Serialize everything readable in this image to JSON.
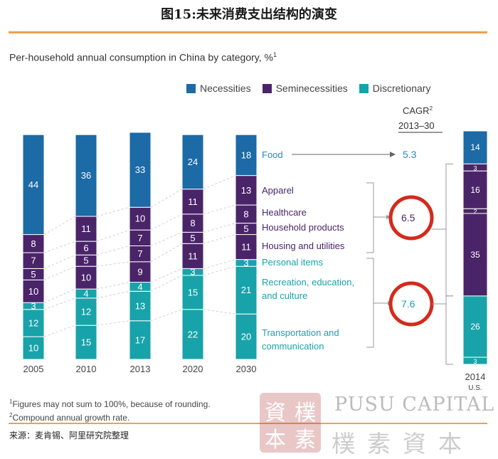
{
  "figure_title": "图15:未来消费支出结构的演变",
  "subtitle": "Per-household annual consumption in China by category, %",
  "subtitle_footnote_mark": "1",
  "legend": [
    {
      "label": "Necessities",
      "color": "#1c6aa6"
    },
    {
      "label": "Seminecessities",
      "color": "#4a2469"
    },
    {
      "label": "Discretionary",
      "color": "#17a3a9"
    }
  ],
  "cagr_header": {
    "line1": "CAGR",
    "mark": "2",
    "line2": "2013–30"
  },
  "chart_data": {
    "type": "bar",
    "stacked": true,
    "categories": [
      "2005",
      "2010",
      "2013",
      "2020",
      "2030"
    ],
    "segment_order_bottom_to_top": [
      "Transportation and communication",
      "Recreation, education, and culture",
      "Personal items",
      "Housing and utilities",
      "Household products",
      "Healthcare",
      "Apparel",
      "Food"
    ],
    "series": [
      {
        "name": "Transportation and communication",
        "group": "Discretionary",
        "values": [
          10,
          15,
          17,
          22,
          20
        ]
      },
      {
        "name": "Recreation, education, and culture",
        "group": "Discretionary",
        "values": [
          12,
          12,
          13,
          15,
          21
        ]
      },
      {
        "name": "Personal items",
        "group": "Discretionary",
        "values": [
          3,
          4,
          4,
          3,
          3
        ]
      },
      {
        "name": "Housing and utilities",
        "group": "Seminecessities",
        "values": [
          10,
          10,
          9,
          11,
          11
        ]
      },
      {
        "name": "Household products",
        "group": "Seminecessities",
        "values": [
          5,
          5,
          7,
          5,
          5
        ]
      },
      {
        "name": "Healthcare",
        "group": "Seminecessities",
        "values": [
          7,
          6,
          7,
          8,
          8
        ]
      },
      {
        "name": "Apparel",
        "group": "Seminecessities",
        "values": [
          8,
          11,
          10,
          11,
          13
        ]
      },
      {
        "name": "Food",
        "group": "Necessities",
        "values": [
          44,
          36,
          33,
          24,
          18
        ]
      }
    ],
    "category_labels": [
      {
        "lines": [
          "Food"
        ],
        "group": "Necessities"
      },
      {
        "lines": [
          "Apparel"
        ],
        "group": "Seminecessities"
      },
      {
        "lines": [
          "Healthcare"
        ],
        "group": "Seminecessities"
      },
      {
        "lines": [
          "Household products"
        ],
        "group": "Seminecessities"
      },
      {
        "lines": [
          "Housing and utilities"
        ],
        "group": "Seminecessities"
      },
      {
        "lines": [
          "Personal items"
        ],
        "group": "Discretionary"
      },
      {
        "lines": [
          "Recreation, education,",
          "and culture"
        ],
        "group": "Discretionary"
      },
      {
        "lines": [
          "Transportation and",
          "communication"
        ],
        "group": "Discretionary"
      }
    ],
    "cagr": {
      "Necessities": "5.3",
      "Seminecessities": "6.5",
      "Discretionary": "7.6"
    },
    "comparison": {
      "label": "2014",
      "sublabel": "U.S.",
      "segments_top_to_bottom": [
        {
          "group": "Necessities",
          "value": 14
        },
        {
          "group": "Seminecessities",
          "value": 3
        },
        {
          "group": "Seminecessities",
          "value": 16
        },
        {
          "group": "Seminecessities",
          "value": 2
        },
        {
          "group": "Seminecessities",
          "value": 35
        },
        {
          "group": "Discretionary",
          "value": 26
        },
        {
          "group": "Discretionary",
          "value": 3
        }
      ]
    }
  },
  "footnotes": [
    {
      "mark": "1",
      "text": "Figures may not sum to 100%, because of rounding."
    },
    {
      "mark": "2",
      "text": "Compound annual growth rate."
    }
  ],
  "source": "来源：麦肯锡、阿里研究院整理",
  "watermark": {
    "seal": "樸素資本",
    "latin": "PUSU CAPITAL",
    "cjk": "樸素資本"
  }
}
